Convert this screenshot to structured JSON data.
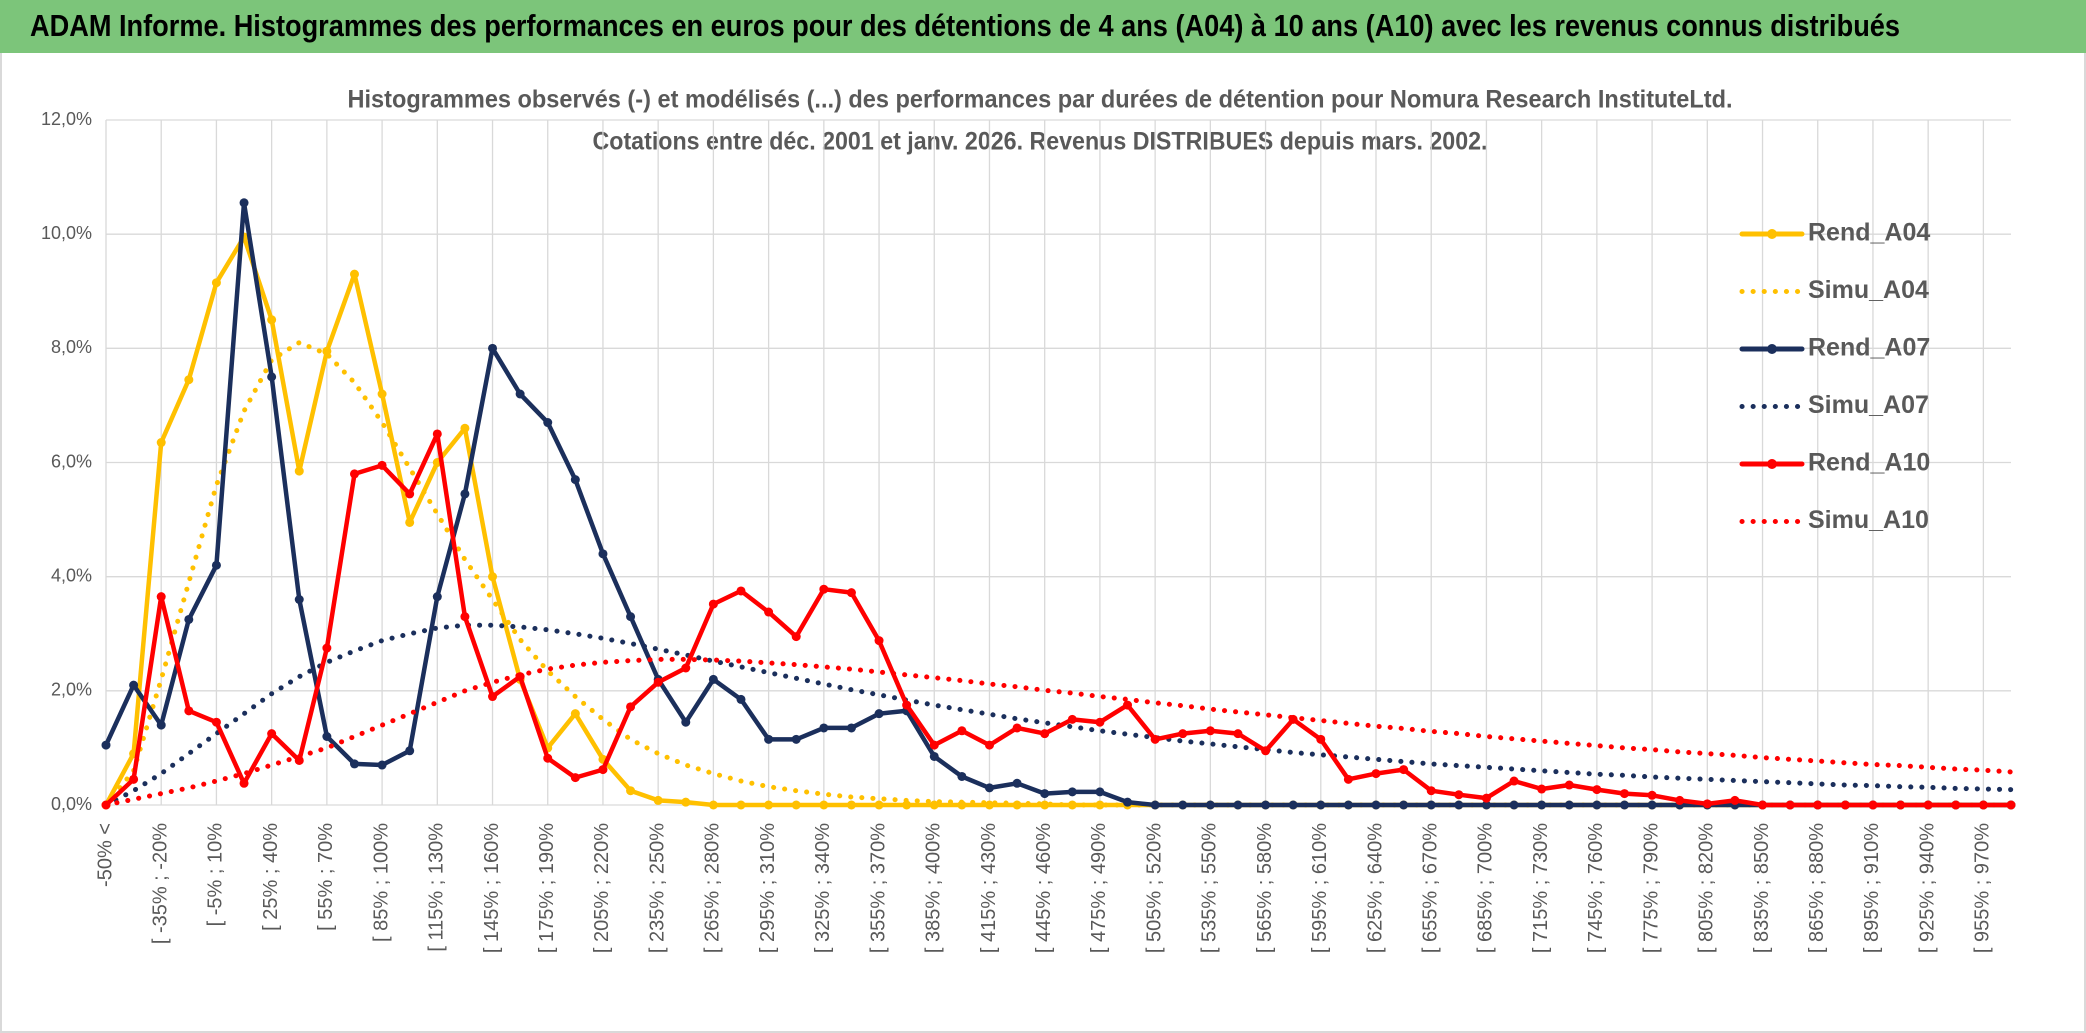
{
  "chart_data": {
    "type": "line",
    "title": "ADAM Informe. Histogrammes des performances en euros pour des détentions de 4 ans (A04) à 10 ans (A10) avec les revenus connus distribués",
    "subtitle": [
      "Histogrammes observés (-) et modélisés (...) des performances par durées de détention pour Nomura Research InstituteLtd.",
      "Cotations entre déc. 2001 et janv. 2026. Revenus DISTRIBUES depuis mars. 2002."
    ],
    "categories": [
      "-50% <",
      null,
      "[ -35% ; -20%",
      null,
      "[ -5% ; 10%",
      null,
      "[ 25% ; 40%",
      null,
      "[ 55% ; 70%",
      null,
      "[ 85% ; 100%",
      null,
      "[ 115% ; 130%",
      null,
      "[ 145% ; 160%",
      null,
      "[ 175% ; 190%",
      null,
      "[ 205% ; 220%",
      null,
      "[ 235% ; 250%",
      null,
      "[ 265% ; 280%",
      null,
      "[ 295% ; 310%",
      null,
      "[ 325% ; 340%",
      null,
      "[ 355% ; 370%",
      null,
      "[ 385% ; 400%",
      null,
      "[ 415% ; 430%",
      null,
      "[ 445% ; 460%",
      null,
      "[ 475% ; 490%",
      null,
      "[ 505% ; 520%",
      null,
      "[ 535% ; 550%",
      null,
      "[ 565% ; 580%",
      null,
      "[ 595% ; 610%",
      null,
      "[ 625% ; 640%",
      null,
      "[ 655% ; 670%",
      null,
      "[ 685% ; 700%",
      null,
      "[ 715% ; 730%",
      null,
      "[ 745% ; 760%",
      null,
      "[ 775% ; 790%",
      null,
      "[ 805% ; 820%",
      null,
      "[ 835% ; 850%",
      null,
      "[ 865% ; 880%",
      null,
      "[ 895% ; 910%",
      null,
      "[ 925% ; 940%",
      null,
      "[ 955% ; 970%",
      null
    ],
    "series": [
      {
        "name": "Rend_A04",
        "color": "#ffc000",
        "dash": "solid",
        "marker": true,
        "values": [
          0,
          0.9,
          6.35,
          7.45,
          9.15,
          9.95,
          8.5,
          5.85,
          7.95,
          9.3,
          7.2,
          4.95,
          6.0,
          6.6,
          4.0,
          2.2,
          1.0,
          1.6,
          0.8,
          0.25,
          0.08,
          0.05,
          0,
          0,
          0,
          0,
          0,
          0,
          0,
          0,
          0,
          0,
          0,
          0,
          0,
          0,
          0,
          0,
          0,
          0,
          0,
          0,
          0,
          0,
          0,
          0,
          0,
          0,
          0,
          0,
          0,
          0,
          0,
          0,
          0,
          0,
          0,
          0,
          0,
          0,
          0,
          0,
          0,
          0,
          0,
          0,
          0,
          0,
          0,
          0
        ]
      },
      {
        "name": "Simu_A04",
        "color": "#ffc000",
        "dash": "dotted",
        "marker": false,
        "values": [
          0,
          0.6,
          2.2,
          3.9,
          5.6,
          6.9,
          7.8,
          8.1,
          7.9,
          7.4,
          6.7,
          5.9,
          5.1,
          4.3,
          3.6,
          2.9,
          2.35,
          1.9,
          1.5,
          1.15,
          0.9,
          0.7,
          0.55,
          0.42,
          0.32,
          0.25,
          0.19,
          0.14,
          0.11,
          0.08,
          0.06,
          0.05,
          0.04,
          0.03,
          0.02,
          0,
          0,
          0,
          0,
          0,
          0,
          0,
          0,
          0,
          0,
          0,
          0,
          0,
          0,
          0,
          0,
          0,
          0,
          0,
          0,
          0,
          0,
          0,
          0,
          0,
          0,
          0,
          0,
          0,
          0,
          0,
          0,
          0,
          0,
          0
        ]
      },
      {
        "name": "Rend_A07",
        "color": "#1b2f5c",
        "dash": "solid",
        "marker": true,
        "values": [
          1.05,
          2.1,
          1.4,
          3.25,
          4.2,
          10.55,
          7.5,
          3.6,
          1.2,
          0.72,
          0.7,
          0.95,
          3.65,
          5.45,
          8.0,
          7.2,
          6.7,
          5.7,
          4.4,
          3.3,
          2.2,
          1.45,
          2.2,
          1.85,
          1.15,
          1.15,
          1.35,
          1.35,
          1.6,
          1.65,
          0.85,
          0.5,
          0.3,
          0.38,
          0.2,
          0.23,
          0.23,
          0.05,
          0,
          0,
          0,
          0,
          0,
          0,
          0,
          0,
          0,
          0,
          0,
          0,
          0,
          0,
          0,
          0,
          0,
          0,
          0,
          0,
          0,
          0,
          0,
          0,
          0,
          0,
          0,
          0,
          0,
          0,
          0,
          0
        ]
      },
      {
        "name": "Simu_A07",
        "color": "#1b2f5c",
        "dash": "dotted",
        "marker": false,
        "values": [
          0,
          0.25,
          0.55,
          0.9,
          1.25,
          1.6,
          1.95,
          2.25,
          2.5,
          2.7,
          2.88,
          3.0,
          3.1,
          3.15,
          3.15,
          3.12,
          3.07,
          3.0,
          2.92,
          2.83,
          2.73,
          2.63,
          2.52,
          2.42,
          2.32,
          2.22,
          2.12,
          2.02,
          1.93,
          1.84,
          1.75,
          1.67,
          1.59,
          1.51,
          1.44,
          1.37,
          1.3,
          1.24,
          1.18,
          1.12,
          1.07,
          1.02,
          0.97,
          0.92,
          0.88,
          0.84,
          0.8,
          0.76,
          0.72,
          0.69,
          0.66,
          0.63,
          0.6,
          0.57,
          0.54,
          0.52,
          0.49,
          0.47,
          0.45,
          0.43,
          0.41,
          0.39,
          0.37,
          0.35,
          0.34,
          0.32,
          0.31,
          0.29,
          0.28,
          0.27
        ]
      },
      {
        "name": "Rend_A10",
        "color": "#ff0000",
        "dash": "solid",
        "marker": true,
        "values": [
          0,
          0.45,
          3.65,
          1.65,
          1.45,
          0.38,
          1.25,
          0.78,
          2.75,
          5.8,
          5.95,
          5.45,
          6.5,
          3.3,
          1.9,
          2.25,
          0.82,
          0.48,
          0.62,
          1.72,
          2.15,
          2.4,
          3.52,
          3.75,
          3.38,
          2.95,
          3.78,
          3.72,
          2.88,
          1.75,
          1.05,
          1.3,
          1.05,
          1.35,
          1.25,
          1.5,
          1.45,
          1.75,
          1.15,
          1.25,
          1.3,
          1.25,
          0.95,
          1.5,
          1.15,
          0.45,
          0.55,
          0.62,
          0.25,
          0.18,
          0.12,
          0.42,
          0.28,
          0.35,
          0.27,
          0.2,
          0.17,
          0.08,
          0.02,
          0.08,
          0,
          0,
          0,
          0,
          0,
          0,
          0,
          0,
          0,
          0
        ]
      },
      {
        "name": "Simu_A10",
        "color": "#ff0000",
        "dash": "dotted",
        "marker": false,
        "values": [
          0,
          0.1,
          0.2,
          0.3,
          0.42,
          0.55,
          0.7,
          0.85,
          1.0,
          1.2,
          1.4,
          1.6,
          1.8,
          2.0,
          2.15,
          2.28,
          2.38,
          2.45,
          2.5,
          2.53,
          2.55,
          2.55,
          2.54,
          2.52,
          2.49,
          2.46,
          2.42,
          2.38,
          2.33,
          2.28,
          2.23,
          2.18,
          2.12,
          2.07,
          2.01,
          1.96,
          1.9,
          1.85,
          1.79,
          1.74,
          1.68,
          1.63,
          1.58,
          1.53,
          1.48,
          1.43,
          1.38,
          1.34,
          1.29,
          1.25,
          1.2,
          1.16,
          1.12,
          1.08,
          1.04,
          1.0,
          0.97,
          0.93,
          0.9,
          0.87,
          0.83,
          0.8,
          0.77,
          0.74,
          0.71,
          0.69,
          0.66,
          0.63,
          0.61,
          0.58
        ]
      }
    ],
    "ylim": [
      0,
      12
    ],
    "yticks": [
      {
        "value": 0,
        "label": "0,0%"
      },
      {
        "value": 2,
        "label": "2,0%"
      },
      {
        "value": 4,
        "label": "4,0%"
      },
      {
        "value": 6,
        "label": "6,0%"
      },
      {
        "value": 8,
        "label": "8,0%"
      },
      {
        "value": 10,
        "label": "10,0%"
      },
      {
        "value": 12,
        "label": "12,0%"
      }
    ],
    "grid": true,
    "legend": "right",
    "header_color": "#7cc57a"
  }
}
